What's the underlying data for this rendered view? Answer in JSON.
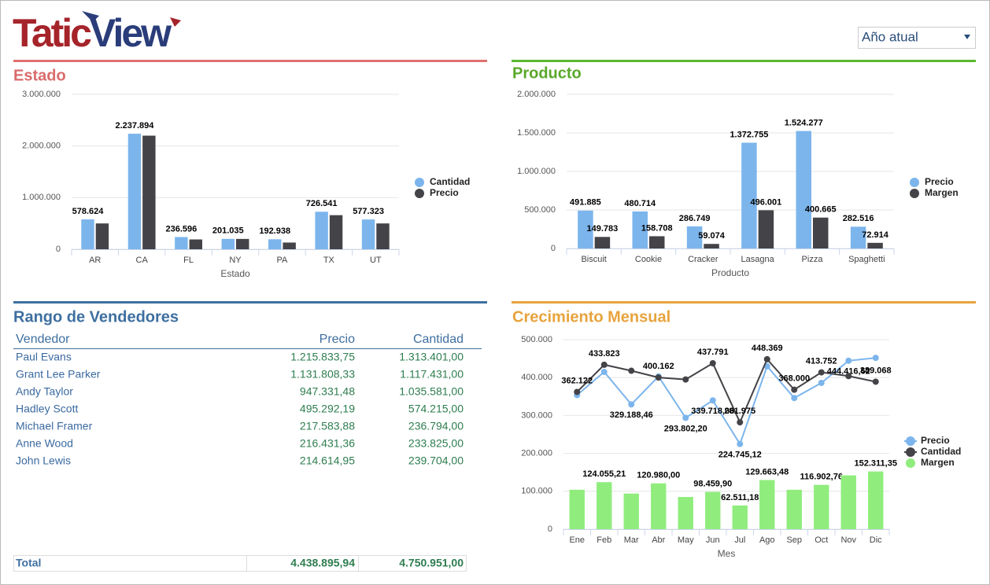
{
  "header": {
    "logo_parts": [
      "Tatic",
      "View"
    ]
  },
  "filter": {
    "selected": "Año atual"
  },
  "chart_data": [
    {
      "type": "bar",
      "title": "Estado",
      "x_label": "Estado",
      "legend": "right",
      "categories": [
        "AR",
        "CA",
        "FL",
        "NY",
        "PA",
        "TX",
        "UT"
      ],
      "series": [
        {
          "name": "Cantidad",
          "color": "#7cb5ec",
          "values": [
            578624,
            2237894,
            236596,
            201035,
            192938,
            726541,
            577323
          ],
          "value_labels": [
            "578.624",
            "2.237.894",
            "236.596",
            "201.035",
            "192.938",
            "726.541",
            "577.323"
          ]
        },
        {
          "name": "Precio",
          "color": "#434348",
          "values": [
            500000,
            2200000,
            190000,
            200000,
            130000,
            660000,
            500000
          ]
        }
      ],
      "ylim": [
        0,
        3000000
      ],
      "yticks": [
        0,
        {
          "value": 1000000,
          "label": "1.000.000"
        },
        {
          "value": 2000000,
          "label": "2.000.000"
        },
        {
          "value": 3000000,
          "label": "3.000.000"
        }
      ],
      "grid": true
    },
    {
      "type": "bar",
      "title": "Producto",
      "x_label": "Producto",
      "legend": "right",
      "categories": [
        "Biscuit",
        "Cookie",
        "Cracker",
        "Lasagna",
        "Pizza",
        "Spaghetti"
      ],
      "series": [
        {
          "name": "Precio",
          "color": "#7cb5ec",
          "values": [
            491885,
            480714,
            286749,
            1372755,
            1524277,
            282516
          ],
          "value_labels": [
            "491.885",
            "480.714",
            "286.749",
            "1.372.755",
            "1.524.277",
            "282.516"
          ]
        },
        {
          "name": "Margen",
          "color": "#434348",
          "values": [
            149783,
            158708,
            59074,
            496001,
            400665,
            72914
          ],
          "value_labels": [
            "149.783",
            "158.708",
            "59.074",
            "496.001",
            "400.665",
            "72.914"
          ]
        }
      ],
      "ylim": [
        0,
        2000000
      ],
      "yticks": [
        0,
        {
          "value": 500000,
          "label": "500.000"
        },
        {
          "value": 1000000,
          "label": "1.000.000"
        },
        {
          "value": 1500000,
          "label": "1.500.000"
        },
        {
          "value": 2000000,
          "label": "2.000.000"
        }
      ],
      "grid": true
    },
    {
      "type": "combo",
      "title": "Crecimiento Mensual",
      "x_label": "Mes",
      "legend": "right",
      "categories": [
        "Ene",
        "Feb",
        "Mar",
        "Abr",
        "May",
        "Jun",
        "Jul",
        "Ago",
        "Sep",
        "Oct",
        "Nov",
        "Dic"
      ],
      "series": [
        {
          "name": "Precio",
          "type": "line",
          "color": "#7cb5ec",
          "values": [
            354000,
            415000,
            329188.46,
            403000,
            293802.2,
            339718.06,
            224745.12,
            430000,
            346000,
            386000,
            444416.62,
            452000
          ],
          "value_labels": [
            null,
            null,
            "329.188,46",
            null,
            "293.802,20",
            "339.718,06",
            "224.745,12",
            null,
            null,
            null,
            "444.416,62",
            null
          ]
        },
        {
          "name": "Cantidad",
          "type": "line",
          "color": "#434348",
          "values": [
            362122,
            433823,
            418000,
            400162,
            395000,
            437791,
            281975,
            448369,
            368000,
            413752,
            404000,
            389068
          ],
          "value_labels": [
            "362.122",
            "433.823",
            null,
            "400.162",
            null,
            "437.791",
            "281.975",
            "448.369",
            "368.000",
            "413.752",
            null,
            "389.068"
          ]
        },
        {
          "name": "Margen",
          "type": "bar",
          "color": "#90ed7d",
          "values": [
            104000,
            124055.21,
            94000,
            120980,
            85000,
            98459.9,
            62511.18,
            129663.48,
            104000,
            116902.76,
            142000,
            152311.35
          ],
          "value_labels": [
            null,
            "124.055,21",
            null,
            "120.980,00",
            null,
            "98.459,90",
            "62.511,18",
            "129.663,48",
            null,
            "116.902,76",
            null,
            "152.311,35"
          ]
        }
      ],
      "ylim": [
        0,
        500000
      ],
      "yticks": [
        0,
        {
          "value": 100000,
          "label": "100.000"
        },
        {
          "value": 200000,
          "label": "200.000"
        },
        {
          "value": 300000,
          "label": "300.000"
        },
        {
          "value": 400000,
          "label": "400.000"
        },
        {
          "value": 500000,
          "label": "500.000"
        }
      ],
      "grid": true
    }
  ],
  "table": {
    "title": "Rango de Vendedores",
    "columns": [
      "Vendedor",
      "Precio",
      "Cantidad"
    ],
    "rows": [
      [
        "Paul Evans",
        "1.215.833,75",
        "1.313.401,00"
      ],
      [
        "Grant Lee Parker",
        "1.131.808,33",
        "1.117.431,00"
      ],
      [
        "Andy Taylor",
        "947.331,48",
        "1.035.581,00"
      ],
      [
        "Hadley Scott",
        "495.292,19",
        "574.215,00"
      ],
      [
        "Michael Framer",
        "217.583,88",
        "236.794,00"
      ],
      [
        "Anne Wood",
        "216.431,36",
        "233.825,00"
      ],
      [
        "John Lewis",
        "214.614,95",
        "239.704,00"
      ]
    ],
    "total": [
      "Total",
      "4.438.895,94",
      "4.750.951,00"
    ]
  }
}
